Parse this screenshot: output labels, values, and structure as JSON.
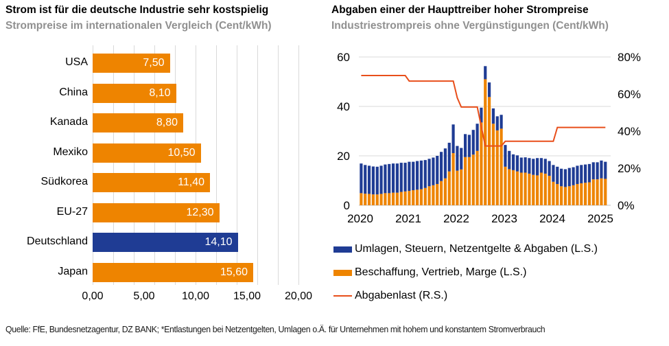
{
  "colors": {
    "orange": "#ee8400",
    "blue": "#1f3c94",
    "line": "#e84e1a",
    "grid": "#d9d9d9",
    "axis": "#bfbfbf",
    "subtitle_gray": "#909090",
    "bar_label_white": "#ffffff"
  },
  "source_note": "Quelle: FfE, Bundesnetzagentur, DZ BANK; *Entlastungen bei Netzentgelten, Umlagen o.Ä. für Unternehmen mit hohem und konstantem Stromverbrauch",
  "chart_data": [
    {
      "type": "bar",
      "orientation": "horizontal",
      "title": "Strom ist für die deutsche Industrie sehr kostspielig",
      "subtitle": "Strompreise im internationalen Vergleich (Cent/kWh)",
      "categories": [
        "USA",
        "China",
        "Kanada",
        "Mexiko",
        "Südkorea",
        "EU-27",
        "Deutschland",
        "Japan"
      ],
      "values": [
        7.5,
        8.1,
        8.8,
        10.5,
        11.4,
        12.3,
        14.1,
        15.6
      ],
      "value_labels": [
        "7,50",
        "8,10",
        "8,80",
        "10,50",
        "11,40",
        "12,30",
        "14,10",
        "15,60"
      ],
      "highlight_category": "Deutschland",
      "bar_color": "orange",
      "highlight_color": "blue",
      "xlim": [
        0,
        20
      ],
      "x_ticks": [
        0,
        5,
        10,
        15,
        20
      ],
      "x_tick_labels": [
        "0,00",
        "5,00",
        "10,00",
        "15,00",
        "20,00"
      ],
      "gridline_step": 2,
      "grid": "vertical"
    },
    {
      "type": "stacked-bar-line",
      "title": "Abgaben einer der Haupttreiber hoher Strompreise",
      "subtitle": "Industriestrompreis ohne Vergünstigungen (Cent/kWh)",
      "x_start": "2020-01",
      "x_end": "2025-02",
      "frequency": "monthly",
      "x_tick_labels": [
        "2020",
        "2021",
        "2022",
        "2023",
        "2024",
        "2025"
      ],
      "left_axis": {
        "min": 0,
        "max": 60,
        "ticks": [
          0,
          20,
          40,
          60
        ],
        "tick_labels": [
          "0",
          "20",
          "40",
          "60"
        ]
      },
      "right_axis": {
        "min": 0,
        "max": 80,
        "ticks": [
          0,
          20,
          40,
          60,
          80
        ],
        "tick_labels": [
          "0%",
          "20%",
          "40%",
          "60%",
          "80%"
        ]
      },
      "grid": "horizontal",
      "legend_position": "bottom",
      "series": [
        {
          "name": "Umlagen, Steuern, Netzentgelte & Abgaben (L.S.)",
          "role": "bar-stack-top",
          "axis": "left",
          "color": "blue",
          "values": [
            12.0,
            11.6,
            11.4,
            11.3,
            11.2,
            11.4,
            11.6,
            11.8,
            11.8,
            11.8,
            11.8,
            11.6,
            11.8,
            11.5,
            11.6,
            11.6,
            11.3,
            11.1,
            11.2,
            11.4,
            11.8,
            12.1,
            11.6,
            11.6,
            10.0,
            8.7,
            9.3,
            9.0,
            10.0,
            11.0,
            6.0,
            5.3,
            5.9,
            6.2,
            5.7,
            5.6,
            8.8,
            7.4,
            6.4,
            6.5,
            6.1,
            6.2,
            6.3,
            6.5,
            7.0,
            5.9,
            6.0,
            6.0,
            6.8,
            7.0,
            7.1,
            7.2,
            7.4,
            7.3,
            7.4,
            7.4,
            7.4,
            7.4,
            6.9,
            6.9,
            7.2,
            6.9
          ]
        },
        {
          "name": "Beschaffung, Vertrieb, Marge (L.S.)",
          "role": "bar-stack-bottom",
          "axis": "left",
          "color": "orange",
          "values": [
            4.9,
            4.7,
            4.6,
            4.4,
            4.4,
            4.6,
            4.9,
            4.9,
            5.1,
            5.1,
            5.4,
            5.6,
            5.8,
            6.1,
            6.3,
            6.5,
            7.0,
            7.7,
            8.1,
            8.6,
            9.8,
            10.9,
            13.7,
            21.1,
            14.0,
            14.5,
            19.5,
            19.5,
            20.5,
            22.0,
            33.5,
            51.0,
            43.8,
            33.0,
            30.3,
            31.0,
            15.6,
            14.6,
            14.2,
            13.7,
            13.2,
            13.2,
            12.8,
            12.3,
            12.1,
            13.2,
            12.8,
            11.9,
            9.5,
            8.6,
            7.7,
            7.4,
            7.7,
            8.1,
            8.6,
            8.9,
            9.1,
            9.3,
            10.5,
            10.5,
            10.9,
            10.7
          ]
        },
        {
          "name": "Abgabenlast (R.S.)",
          "role": "line",
          "axis": "right",
          "color": "line",
          "values_pct": [
            70,
            70,
            70,
            70,
            70,
            70,
            70,
            70,
            70,
            70,
            70,
            70,
            67,
            67,
            67,
            67,
            67,
            67,
            67,
            67,
            67,
            67,
            67,
            67,
            58,
            53,
            53,
            53,
            53,
            53,
            42.5,
            32,
            32,
            32,
            32,
            32,
            34.5,
            34.5,
            34.5,
            34.5,
            34.5,
            34.5,
            34.5,
            34.5,
            34.5,
            34.5,
            34.5,
            34.5,
            34.5,
            42,
            42,
            42,
            42,
            42,
            42,
            42,
            42,
            42,
            42,
            42,
            42,
            42
          ]
        }
      ]
    }
  ]
}
